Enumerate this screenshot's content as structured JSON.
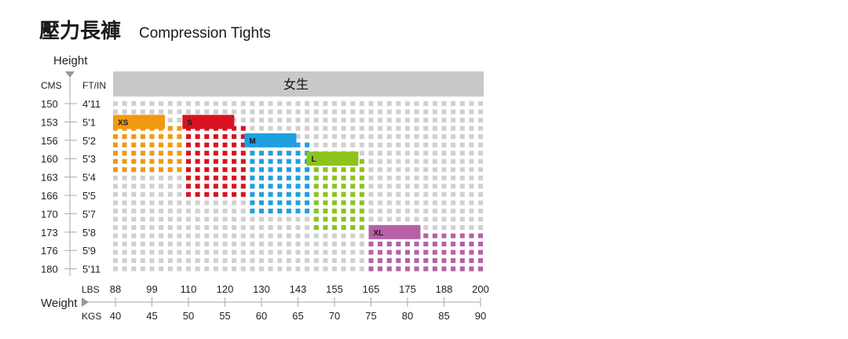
{
  "title": {
    "main": "壓力長褲",
    "sub": "Compression Tights"
  },
  "chart_data": {
    "type": "heatmap",
    "header": "女生",
    "y_axis": {
      "label": "Height",
      "unit_cm": "CMS",
      "unit_ftin": "FT/IN",
      "cm": [
        "150",
        "153",
        "156",
        "160",
        "163",
        "166",
        "170",
        "173",
        "176",
        "180"
      ],
      "ftin": [
        "4'11",
        "5'1",
        "5'2",
        "5'3",
        "5'4",
        "5'5",
        "5'7",
        "5'8",
        "5'9",
        "5'11"
      ]
    },
    "x_axis": {
      "label": "Weight",
      "unit_lbs": "LBS",
      "unit_kgs": "KGS",
      "lbs": [
        "88",
        "99",
        "110",
        "120",
        "130",
        "143",
        "155",
        "165",
        "175",
        "188",
        "200"
      ],
      "kgs": [
        "40",
        "45",
        "50",
        "55",
        "60",
        "65",
        "70",
        "75",
        "80",
        "85",
        "90"
      ]
    },
    "sizes": [
      {
        "name": "XS",
        "color": "#ef9a12",
        "kg_range": [
          40,
          49.5
        ],
        "cm_range": [
          153,
          163
        ]
      },
      {
        "name": "S",
        "color": "#d8131f",
        "kg_range": [
          49.5,
          58
        ],
        "cm_range": [
          153,
          166
        ]
      },
      {
        "name": "M",
        "color": "#1ea0e0",
        "kg_range": [
          58,
          66.5
        ],
        "cm_range": [
          156,
          170
        ]
      },
      {
        "name": "L",
        "color": "#8dc31c",
        "kg_range": [
          66.5,
          74.5
        ],
        "cm_range": [
          160,
          173
        ]
      },
      {
        "name": "XL",
        "color": "#b760a5",
        "kg_range": [
          75,
          90
        ],
        "cm_range": [
          173,
          180
        ]
      }
    ],
    "grid_color": "#d0d0d0",
    "header_color": "#c8c8c8"
  }
}
